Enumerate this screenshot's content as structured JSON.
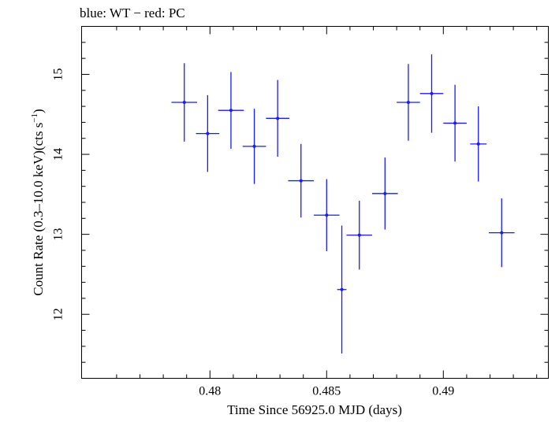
{
  "chart_data": {
    "type": "scatter",
    "title": "blue: WT − red: PC",
    "xlabel": "Time Since 56925.0 MJD (days)",
    "ylabel_main": "Count Rate (0.3–10.0 keV)(cts s",
    "ylabel_sup": "−1",
    "ylabel_close": ")",
    "xlim": [
      0.4745,
      0.4945
    ],
    "ylim": [
      11.2,
      15.6
    ],
    "xticks": [
      {
        "value": 0.48,
        "label": "0.48"
      },
      {
        "value": 0.485,
        "label": "0.485"
      },
      {
        "value": 0.49,
        "label": "0.49"
      }
    ],
    "yticks": [
      {
        "value": 12,
        "label": "12"
      },
      {
        "value": 13,
        "label": "13"
      },
      {
        "value": 14,
        "label": "14"
      },
      {
        "value": 15,
        "label": "15"
      }
    ],
    "series": [
      {
        "color": "#1a1aff",
        "points": [
          {
            "x": 0.4789,
            "xerr": 0.00055,
            "y": 14.65,
            "yerr_lo": 0.49,
            "yerr_hi": 0.49
          },
          {
            "x": 0.4799,
            "xerr": 0.0005,
            "y": 14.26,
            "yerr_lo": 0.48,
            "yerr_hi": 0.48
          },
          {
            "x": 0.4809,
            "xerr": 0.00055,
            "y": 14.55,
            "yerr_lo": 0.48,
            "yerr_hi": 0.48
          },
          {
            "x": 0.4819,
            "xerr": 0.0005,
            "y": 14.1,
            "yerr_lo": 0.47,
            "yerr_hi": 0.47
          },
          {
            "x": 0.4829,
            "xerr": 0.0005,
            "y": 14.45,
            "yerr_lo": 0.48,
            "yerr_hi": 0.48
          },
          {
            "x": 0.4839,
            "xerr": 0.00055,
            "y": 13.67,
            "yerr_lo": 0.46,
            "yerr_hi": 0.46
          },
          {
            "x": 0.485,
            "xerr": 0.00055,
            "y": 13.24,
            "yerr_lo": 0.45,
            "yerr_hi": 0.45
          },
          {
            "x": 0.48565,
            "xerr": 0.0002,
            "y": 12.31,
            "yerr_lo": 0.8,
            "yerr_hi": 0.8
          },
          {
            "x": 0.4864,
            "xerr": 0.00055,
            "y": 12.99,
            "yerr_lo": 0.43,
            "yerr_hi": 0.43
          },
          {
            "x": 0.4875,
            "xerr": 0.00055,
            "y": 13.51,
            "yerr_lo": 0.45,
            "yerr_hi": 0.45
          },
          {
            "x": 0.4885,
            "xerr": 0.0005,
            "y": 14.65,
            "yerr_lo": 0.48,
            "yerr_hi": 0.48
          },
          {
            "x": 0.4895,
            "xerr": 0.0005,
            "y": 14.76,
            "yerr_lo": 0.49,
            "yerr_hi": 0.49
          },
          {
            "x": 0.4905,
            "xerr": 0.0005,
            "y": 14.39,
            "yerr_lo": 0.48,
            "yerr_hi": 0.48
          },
          {
            "x": 0.4915,
            "xerr": 0.00035,
            "y": 14.13,
            "yerr_lo": 0.47,
            "yerr_hi": 0.47
          },
          {
            "x": 0.4925,
            "xerr": 0.00055,
            "y": 13.02,
            "yerr_lo": 0.43,
            "yerr_hi": 0.43
          }
        ]
      }
    ]
  }
}
